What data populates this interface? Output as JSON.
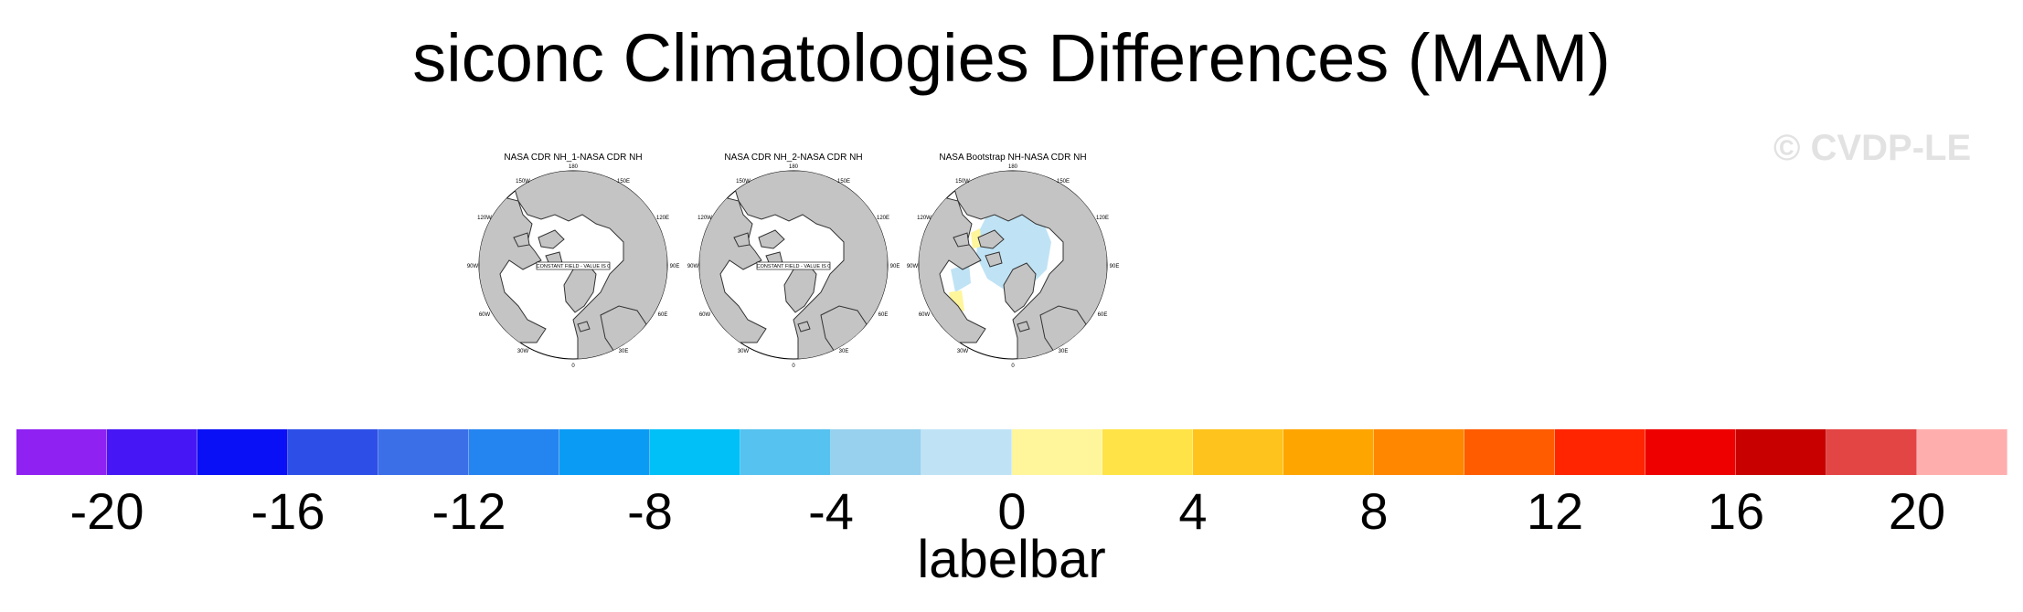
{
  "title": "siconc Climatologies Differences (MAM)",
  "watermark": "© CVDP-LE",
  "panels": [
    {
      "title": "NASA CDR NH_1-NASA CDR NH",
      "constant_field_label": "CONSTANT FIELD - VALUE IS 0"
    },
    {
      "title": "NASA CDR NH_2-NASA CDR NH",
      "constant_field_label": "CONSTANT FIELD - VALUE IS 0"
    },
    {
      "title": "NASA Bootstrap NH-NASA CDR NH",
      "constant_field_label": ""
    }
  ],
  "map_labels": {
    "lon_180": "180",
    "lon_150w": "150W",
    "lon_150e": "150E",
    "lon_120w": "120W",
    "lon_120e": "120E",
    "lon_90w": "90W",
    "lon_90e": "90E",
    "lon_60w": "60W",
    "lon_60e": "60E",
    "lon_30w": "30W",
    "lon_30e": "30E",
    "lon_0": "0"
  },
  "colors": {
    "land": "#c4c4c4",
    "ocean": "#ffffff",
    "positive_small": "#fff59b",
    "negative_small": "#bfe3f5",
    "colorbar": [
      "#8f22f2",
      "#4617f4",
      "#0a10f5",
      "#2d4fe7",
      "#3a6fe8",
      "#2585f0",
      "#0a9cf5",
      "#00c0f7",
      "#56c2ef",
      "#97d1ee",
      "#bfe3f5",
      "#fff59b",
      "#ffe347",
      "#fec41d",
      "#ffa500",
      "#ff8700",
      "#ff5c00",
      "#ff2500",
      "#ee0000",
      "#c80000",
      "#e34545",
      "#ffaeae"
    ]
  },
  "colorbar": {
    "ticks": [
      "-20",
      "-16",
      "-12",
      "-8",
      "-4",
      "0",
      "4",
      "8",
      "12",
      "16",
      "20"
    ],
    "label": "labelbar"
  }
}
